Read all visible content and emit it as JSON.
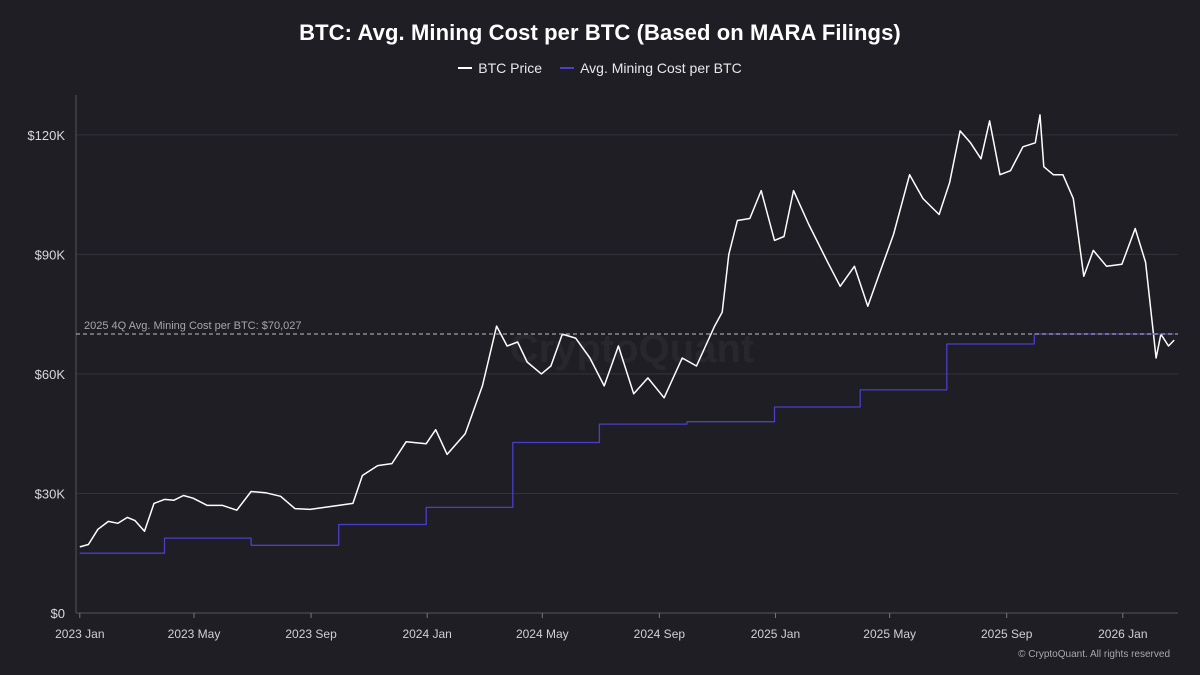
{
  "chart_data": {
    "type": "line",
    "title": "BTC: Avg. Mining Cost per BTC (Based on MARA Filings)",
    "xlabel": "",
    "ylabel": "",
    "x_ticks": [
      "2023 Jan",
      "2023 May",
      "2023 Sep",
      "2024 Jan",
      "2024 May",
      "2024 Sep",
      "2025 Jan",
      "2025 May",
      "2025 Sep",
      "2026 Jan"
    ],
    "y_ticks": [
      "$0",
      "$30K",
      "$60K",
      "$90K",
      "$120K"
    ],
    "ylim": [
      0,
      130000
    ],
    "xlim": [
      "2022-12-28",
      "2026-02-28"
    ],
    "grid": "horizontal",
    "legend_position": "top-center",
    "series": [
      {
        "name": "BTC Price",
        "color": "#ffffff",
        "x": [
          "2023-01-01",
          "2023-01-10",
          "2023-01-20",
          "2023-01-31",
          "2023-02-10",
          "2023-02-20",
          "2023-02-28",
          "2023-03-10",
          "2023-03-20",
          "2023-03-31",
          "2023-04-10",
          "2023-04-20",
          "2023-04-30",
          "2023-05-15",
          "2023-05-31",
          "2023-06-15",
          "2023-06-30",
          "2023-07-15",
          "2023-07-31",
          "2023-08-15",
          "2023-08-31",
          "2023-09-15",
          "2023-09-30",
          "2023-10-15",
          "2023-10-25",
          "2023-11-10",
          "2023-11-25",
          "2023-12-10",
          "2023-12-31",
          "2024-01-10",
          "2024-01-22",
          "2024-02-10",
          "2024-02-28",
          "2024-03-05",
          "2024-03-14",
          "2024-03-25",
          "2024-04-05",
          "2024-04-15",
          "2024-04-30",
          "2024-05-10",
          "2024-05-22",
          "2024-06-05",
          "2024-06-20",
          "2024-07-05",
          "2024-07-20",
          "2024-08-05",
          "2024-08-20",
          "2024-09-06",
          "2024-09-25",
          "2024-10-10",
          "2024-10-29",
          "2024-11-06",
          "2024-11-13",
          "2024-11-22",
          "2024-12-05",
          "2024-12-17",
          "2024-12-31",
          "2025-01-10",
          "2025-01-20",
          "2025-02-05",
          "2025-02-25",
          "2025-03-10",
          "2025-03-25",
          "2025-04-08",
          "2025-04-20",
          "2025-05-05",
          "2025-05-22",
          "2025-06-05",
          "2025-06-22",
          "2025-07-03",
          "2025-07-14",
          "2025-07-25",
          "2025-08-05",
          "2025-08-14",
          "2025-08-25",
          "2025-09-05",
          "2025-09-18",
          "2025-10-01",
          "2025-10-06",
          "2025-10-10",
          "2025-10-20",
          "2025-10-30",
          "2025-11-10",
          "2025-11-21",
          "2025-12-01",
          "2025-12-15",
          "2025-12-31",
          "2026-01-14",
          "2026-01-25",
          "2026-02-05",
          "2026-02-10",
          "2026-02-18",
          "2026-02-24"
        ],
        "values": [
          16600,
          17200,
          21000,
          23000,
          22500,
          24000,
          23200,
          20500,
          27500,
          28500,
          28300,
          29500,
          28800,
          27000,
          27000,
          25800,
          30500,
          30200,
          29300,
          26200,
          26000,
          26500,
          27000,
          27500,
          34500,
          37000,
          37500,
          43000,
          42500,
          46000,
          39800,
          45000,
          57000,
          63000,
          72000,
          67000,
          68000,
          63000,
          60000,
          62000,
          70000,
          69000,
          64000,
          57000,
          67000,
          55000,
          59000,
          54000,
          64000,
          62000,
          72000,
          75500,
          90000,
          98500,
          99000,
          106000,
          93500,
          94500,
          106000,
          97500,
          88000,
          82000,
          87000,
          77000,
          85000,
          95000,
          110000,
          104000,
          100000,
          108000,
          121000,
          118000,
          114000,
          123500,
          110000,
          111000,
          117000,
          118000,
          125000,
          112000,
          110000,
          110000,
          104000,
          84500,
          91000,
          87000,
          87500,
          96500,
          88000,
          64000,
          70000,
          67000,
          68500
        ]
      },
      {
        "name": "Avg. Mining Cost per BTC",
        "color": "#4a3fc8",
        "step": true,
        "x": [
          "2023-01-01",
          "2023-03-31",
          "2023-06-30",
          "2023-09-30",
          "2023-12-31",
          "2024-03-31",
          "2024-06-30",
          "2024-09-30",
          "2024-12-31",
          "2025-03-31",
          "2025-06-30",
          "2025-09-30",
          "2025-12-31",
          "2026-02-24"
        ],
        "values": [
          15000,
          18800,
          17000,
          22200,
          26500,
          42800,
          47400,
          48000,
          51700,
          56000,
          67500,
          70027,
          70027,
          70027
        ]
      }
    ],
    "annotations": [
      {
        "type": "hline",
        "value": 70027,
        "label": "2025 4Q Avg. Mining Cost per BTC: $70,027"
      }
    ]
  },
  "watermark": "CryptoQuant",
  "footer": "© CryptoQuant. All rights reserved"
}
